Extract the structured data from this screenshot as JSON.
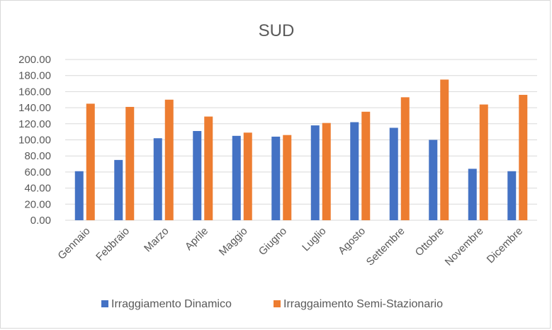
{
  "chart_data": {
    "type": "bar",
    "title": "SUD",
    "xlabel": "",
    "ylabel": "",
    "ylim": [
      0,
      200
    ],
    "ytick_step": 20,
    "ytick_format": "fixed2",
    "grid": true,
    "legend_position": "bottom",
    "categories": [
      "Gennaio",
      "Febbraio",
      "Marzo",
      "Aprile",
      "Maggio",
      "Giugno",
      "Luglio",
      "Agosto",
      "Settembre",
      "Ottobre",
      "Novembre",
      "Dicembre"
    ],
    "series": [
      {
        "name": "Irraggiamento Dinamico",
        "color": "#4472c4",
        "values": [
          61,
          75,
          102,
          111,
          105,
          104,
          118,
          122,
          115,
          100,
          64,
          61
        ]
      },
      {
        "name": "Irraggaimento Semi-Stazionario",
        "color": "#ed7d31",
        "values": [
          145,
          141,
          150,
          129,
          109,
          106,
          121,
          135,
          153,
          175,
          144,
          156
        ]
      }
    ]
  }
}
